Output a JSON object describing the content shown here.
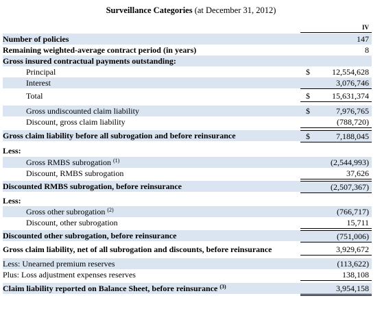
{
  "title": {
    "bold": "Surveillance Categories",
    "normal": " (at December 31, 2012)"
  },
  "column_header": "IV",
  "rows": [
    {
      "label": "Number of policies",
      "value": "147",
      "dollar": "",
      "bold": true,
      "indent": false,
      "shade": true
    },
    {
      "label": "Remaining weighted-average contract period (in years)",
      "value": "8",
      "dollar": "",
      "bold": true,
      "indent": false,
      "shade": false
    },
    {
      "label": "Gross insured contractual payments outstanding:",
      "value": "",
      "dollar": "",
      "bold": true,
      "indent": false,
      "shade": true
    },
    {
      "label": "Principal",
      "value": "12,554,628",
      "dollar": "$",
      "bold": false,
      "indent": true,
      "shade": false
    },
    {
      "label": "Interest",
      "value": "3,076,746",
      "dollar": "",
      "bold": false,
      "indent": true,
      "shade": true
    },
    {
      "label": "Total",
      "value": "15,631,374",
      "dollar": "$",
      "bold": false,
      "indent": true,
      "shade": false
    },
    {
      "label": "Gross undiscounted claim liability",
      "value": "7,976,765",
      "dollar": "$",
      "bold": false,
      "indent": true,
      "shade": true
    },
    {
      "label": "Discount, gross claim liability",
      "value": "(788,720)",
      "dollar": "",
      "bold": false,
      "indent": true,
      "shade": false
    },
    {
      "label": "Gross claim liability before all subrogation and before reinsurance",
      "value": "7,188,045",
      "dollar": "$",
      "bold": true,
      "indent": false,
      "shade": true
    },
    {
      "label": "Less:",
      "value": "",
      "dollar": "",
      "bold": true,
      "indent": false,
      "shade": false
    },
    {
      "label": "Gross RMBS subrogation",
      "sup": "(1)",
      "value": "(2,544,993)",
      "dollar": "",
      "bold": false,
      "indent": true,
      "shade": true
    },
    {
      "label": "Discount, RMBS subrogation",
      "value": "37,626",
      "dollar": "",
      "bold": false,
      "indent": true,
      "shade": false
    },
    {
      "label": "Discounted RMBS subrogation, before reinsurance",
      "value": "(2,507,367)",
      "dollar": "",
      "bold": true,
      "indent": false,
      "shade": true
    },
    {
      "label": "Less:",
      "value": "",
      "dollar": "",
      "bold": true,
      "indent": false,
      "shade": false
    },
    {
      "label": "Gross other subrogation",
      "sup": "(2)",
      "value": "(766,717)",
      "dollar": "",
      "bold": false,
      "indent": true,
      "shade": true
    },
    {
      "label": "Discount, other subrogation",
      "value": "15,711",
      "dollar": "",
      "bold": false,
      "indent": true,
      "shade": false
    },
    {
      "label": "Discounted other subrogation, before reinsurance",
      "value": "(751,006)",
      "dollar": "",
      "bold": true,
      "indent": false,
      "shade": true
    },
    {
      "label": "Gross claim liability, net of all subrogation and discounts, before reinsurance",
      "value": "3,929,672",
      "dollar": "",
      "bold": true,
      "indent": false,
      "shade": false
    },
    {
      "label": "Less: Unearned premium reserves",
      "value": "(113,622)",
      "dollar": "",
      "bold": false,
      "indent": false,
      "shade": true
    },
    {
      "label": "Plus: Loss adjustment expenses reserves",
      "value": "138,108",
      "dollar": "",
      "bold": false,
      "indent": false,
      "shade": false
    },
    {
      "label": "Claim liability reported on Balance Sheet, before reinsurance",
      "sup": "(3)",
      "value": "3,954,158",
      "dollar": "",
      "bold": true,
      "indent": false,
      "shade": true
    }
  ]
}
